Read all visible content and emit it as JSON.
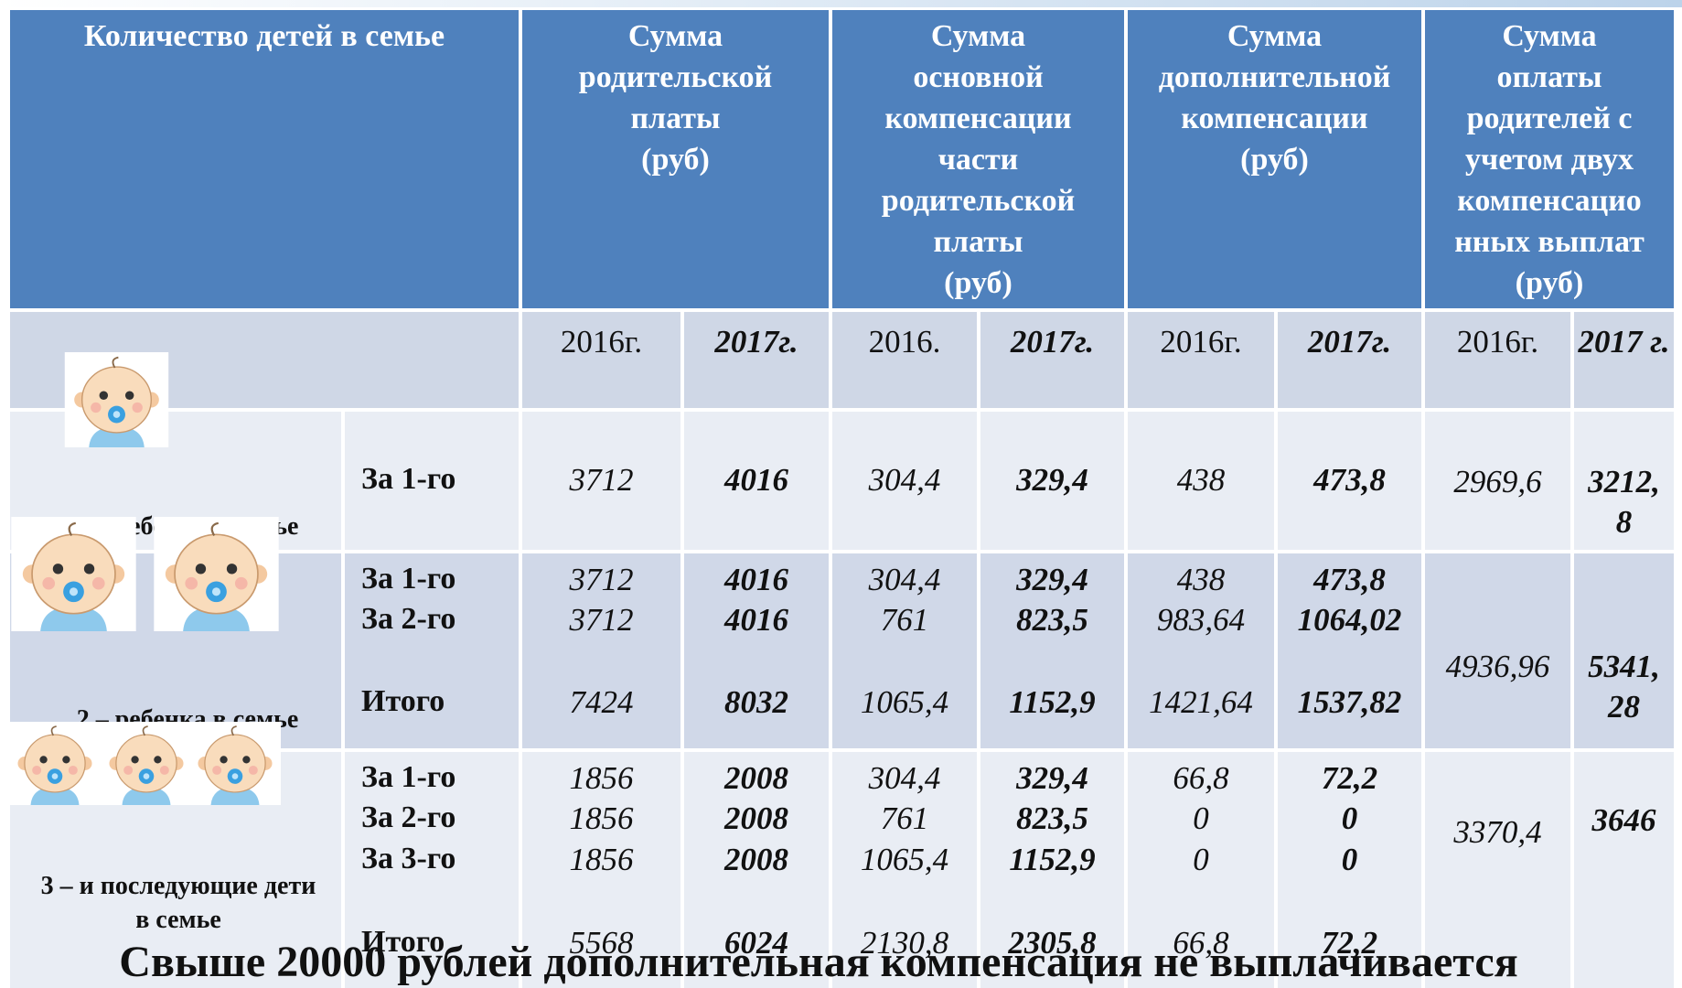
{
  "table": {
    "headers": [
      [
        "Количество детей в семье"
      ],
      [
        "Сумма",
        "родительской",
        "платы",
        "(руб)"
      ],
      [
        "Сумма",
        "основной",
        "компенсации",
        "части",
        "родительской",
        "платы",
        "(руб)"
      ],
      [
        "Сумма",
        "дополнительной",
        "компенсации",
        "(руб)"
      ],
      [
        "Сумма",
        "оплаты",
        "родителей с",
        "учетом двух",
        "компенсацио",
        "нных выплат",
        "(руб)"
      ]
    ],
    "years": [
      "2016г.",
      "2017г.",
      "2016.",
      "2017г.",
      "2016г.",
      "2017г.",
      "2016г.",
      "2017 г."
    ],
    "groups": [
      {
        "label": "1 – ребенок в семье",
        "rows": [
          {
            "label": "За 1-го",
            "values": [
              "3712",
              "4016",
              "304,4",
              "329,4",
              "438",
              "473,8"
            ]
          }
        ],
        "totals": [
          "2969,6",
          "3212,8"
        ]
      },
      {
        "label": "2 – ребенка в семье",
        "rows": [
          {
            "label": "За 1-го",
            "values": [
              "3712",
              "4016",
              "304,4",
              "329,4",
              "438",
              "473,8"
            ]
          },
          {
            "label": "За 2-го",
            "values": [
              "3712",
              "4016",
              "761",
              "823,5",
              "983,64",
              "1064,02"
            ]
          },
          {
            "label": "Итого",
            "values": [
              "7424",
              "8032",
              "1065,4",
              "1152,9",
              "1421,64",
              "1537,82"
            ]
          }
        ],
        "totals": [
          "4936,96",
          "5341,28"
        ]
      },
      {
        "label": "3 – и последующие дети в семье",
        "rows": [
          {
            "label": "За 1-го",
            "values": [
              "1856",
              "2008",
              "304,4",
              "329,4",
              "66,8",
              "72,2"
            ]
          },
          {
            "label": "За 2-го",
            "values": [
              "1856",
              "2008",
              "761",
              "823,5",
              "0",
              "0"
            ]
          },
          {
            "label": "За 3-го",
            "values": [
              "1856",
              "2008",
              "1065,4",
              "1152,9",
              "0",
              "0"
            ]
          },
          {
            "label": "Итого",
            "values": [
              "5568",
              "6024",
              "2130,8",
              "2305,8",
              "66,8",
              "72,2"
            ]
          }
        ],
        "totals": [
          "3370,4",
          "3646"
        ]
      }
    ]
  },
  "footer": "Свыше 20000 рублей дополнительная компенсация не выплачивается"
}
